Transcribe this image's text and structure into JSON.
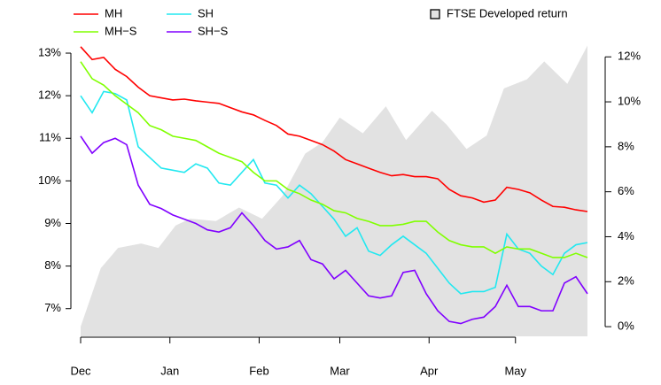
{
  "chart_data": {
    "type": "line",
    "x": [
      0,
      4,
      8,
      12,
      16,
      20,
      24,
      28,
      32,
      36,
      40,
      44,
      48,
      52,
      56,
      60,
      64,
      68,
      72,
      76,
      80,
      84,
      88,
      92,
      96,
      100,
      104,
      108,
      112,
      116,
      120,
      124,
      128,
      132,
      136,
      140,
      144,
      148,
      152,
      156,
      160,
      164,
      168,
      172,
      176
    ],
    "xlim": [
      0,
      176
    ],
    "xticks": [
      {
        "value": 0,
        "label": "Dec"
      },
      {
        "value": 31,
        "label": "Jan"
      },
      {
        "value": 62,
        "label": "Feb"
      },
      {
        "value": 90,
        "label": "Mar"
      },
      {
        "value": 121,
        "label": "Apr"
      },
      {
        "value": 151,
        "label": "May"
      }
    ],
    "ylim": [
      6.35,
      13.25
    ],
    "yticks": [
      {
        "value": 7,
        "label": "7%"
      },
      {
        "value": 8,
        "label": "8%"
      },
      {
        "value": 9,
        "label": "9%"
      },
      {
        "value": 10,
        "label": "10%"
      },
      {
        "value": 11,
        "label": "11%"
      },
      {
        "value": 12,
        "label": "12%"
      },
      {
        "value": 13,
        "label": "13%"
      }
    ],
    "y2lim": [
      -0.43,
      12.64
    ],
    "y2ticks": [
      {
        "value": 0,
        "label": "0%"
      },
      {
        "value": 2,
        "label": "2%"
      },
      {
        "value": 4,
        "label": "4%"
      },
      {
        "value": 6,
        "label": "6%"
      },
      {
        "value": 8,
        "label": "8%"
      },
      {
        "value": 10,
        "label": "10%"
      },
      {
        "value": 12,
        "label": "12%"
      }
    ],
    "series": [
      {
        "name": "MH",
        "color": "#ff0000",
        "values": [
          13.15,
          12.85,
          12.9,
          12.62,
          12.45,
          12.2,
          12.0,
          11.95,
          11.9,
          11.92,
          11.88,
          11.85,
          11.82,
          11.72,
          11.62,
          11.55,
          11.42,
          11.3,
          11.1,
          11.05,
          10.95,
          10.85,
          10.7,
          10.5,
          10.4,
          10.3,
          10.2,
          10.12,
          10.15,
          10.1,
          10.1,
          10.05,
          9.8,
          9.65,
          9.6,
          9.5,
          9.55,
          9.85,
          9.8,
          9.72,
          9.55,
          9.4,
          9.38,
          9.32,
          9.28
        ]
      },
      {
        "name": "SH",
        "color": "#22e8f0",
        "values": [
          12.0,
          11.6,
          12.1,
          12.05,
          11.9,
          10.8,
          10.55,
          10.3,
          10.25,
          10.2,
          10.4,
          10.3,
          9.95,
          9.9,
          10.2,
          10.5,
          9.95,
          9.9,
          9.6,
          9.9,
          9.7,
          9.4,
          9.1,
          8.7,
          8.9,
          8.35,
          8.25,
          8.5,
          8.7,
          8.5,
          8.3,
          7.95,
          7.6,
          7.35,
          7.4,
          7.4,
          7.5,
          8.75,
          8.4,
          8.3,
          8.0,
          7.8,
          8.3,
          8.5,
          8.55
        ]
      },
      {
        "name": "MH−S",
        "color": "#80ff00",
        "values": [
          12.8,
          12.4,
          12.25,
          12.0,
          11.8,
          11.6,
          11.3,
          11.2,
          11.05,
          11.0,
          10.95,
          10.8,
          10.65,
          10.55,
          10.45,
          10.2,
          10.0,
          10.0,
          9.8,
          9.7,
          9.55,
          9.45,
          9.3,
          9.25,
          9.12,
          9.05,
          8.95,
          8.95,
          8.98,
          9.05,
          9.05,
          8.8,
          8.6,
          8.5,
          8.45,
          8.45,
          8.3,
          8.45,
          8.4,
          8.4,
          8.3,
          8.2,
          8.2,
          8.3,
          8.2
        ]
      },
      {
        "name": "SH−S",
        "color": "#8000ff",
        "values": [
          11.05,
          10.65,
          10.9,
          11.0,
          10.85,
          9.9,
          9.45,
          9.35,
          9.2,
          9.1,
          9.0,
          8.85,
          8.8,
          8.9,
          9.25,
          8.95,
          8.6,
          8.4,
          8.45,
          8.6,
          8.15,
          8.05,
          7.7,
          7.9,
          7.6,
          7.3,
          7.25,
          7.3,
          7.85,
          7.9,
          7.35,
          6.95,
          6.7,
          6.65,
          6.75,
          6.8,
          7.05,
          7.55,
          7.05,
          7.05,
          6.95,
          6.95,
          7.6,
          7.75,
          7.35
        ]
      },
      {
        "name": "FTSE Developed return",
        "type": "area",
        "axis": "y2",
        "color": "#e2e2e2",
        "x": [
          0,
          7,
          13,
          21,
          27,
          33,
          38,
          47,
          55,
          63,
          70,
          78,
          84,
          90,
          98,
          106,
          113,
          122,
          127,
          134,
          141,
          147,
          155,
          161,
          169,
          176
        ],
        "values": [
          0,
          2.6,
          3.5,
          3.7,
          3.5,
          4.5,
          4.8,
          4.7,
          5.3,
          4.8,
          5.8,
          7.7,
          8.2,
          9.3,
          8.6,
          9.8,
          8.3,
          9.6,
          9.0,
          7.9,
          8.5,
          10.6,
          11.0,
          11.8,
          10.8,
          12.5
        ]
      }
    ]
  }
}
